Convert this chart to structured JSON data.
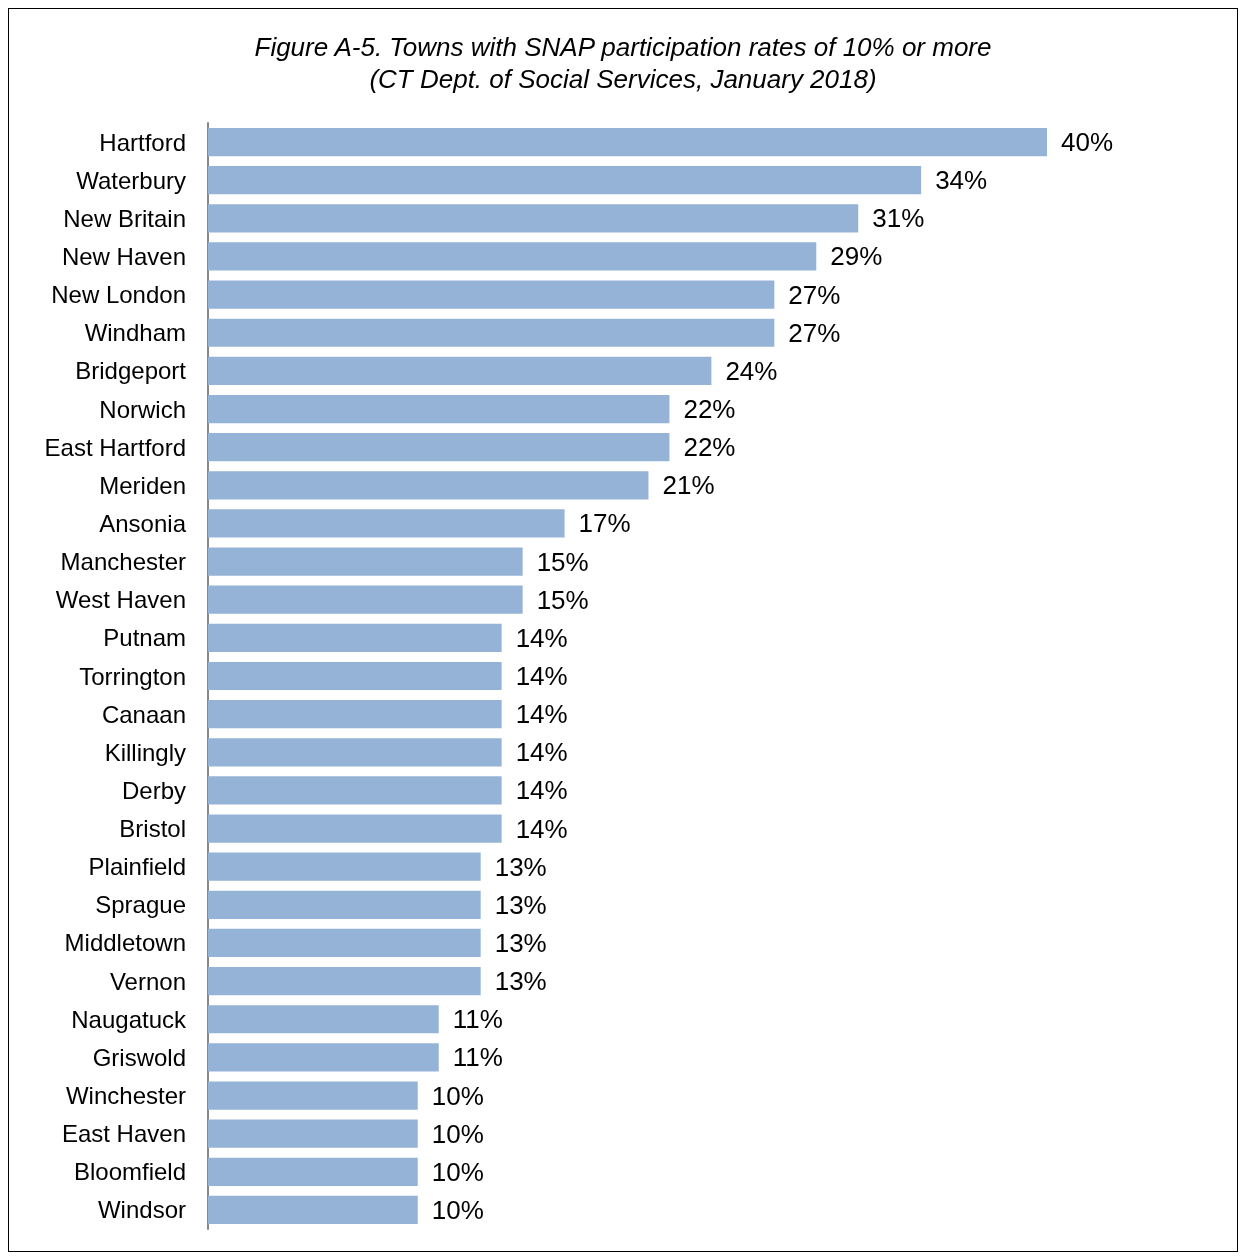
{
  "chart_data": {
    "type": "bar",
    "orientation": "horizontal",
    "title": "Figure A-5. Towns with SNAP participation rates of 10% or more",
    "subtitle": "(CT Dept. of Social Services, January 2018)",
    "categories": [
      "Hartford",
      "Waterbury",
      "New Britain",
      "New Haven",
      "New London",
      "Windham",
      "Bridgeport",
      "Norwich",
      "East Hartford",
      "Meriden",
      "Ansonia",
      "Manchester",
      "West Haven",
      "Putnam",
      "Torrington",
      "Canaan",
      "Killingly",
      "Derby",
      "Bristol",
      "Plainfield",
      "Sprague",
      "Middletown",
      "Vernon",
      "Naugatuck",
      "Griswold",
      "Winchester",
      "East Haven",
      "Bloomfield",
      "Windsor"
    ],
    "values": [
      40,
      34,
      31,
      29,
      27,
      27,
      24,
      22,
      22,
      21,
      17,
      15,
      15,
      14,
      14,
      14,
      14,
      14,
      14,
      13,
      13,
      13,
      13,
      11,
      11,
      10,
      10,
      10,
      10
    ],
    "value_labels": [
      "40%",
      "34%",
      "31%",
      "29%",
      "27%",
      "27%",
      "24%",
      "22%",
      "22%",
      "21%",
      "17%",
      "15%",
      "15%",
      "14%",
      "14%",
      "14%",
      "14%",
      "14%",
      "14%",
      "13%",
      "13%",
      "13%",
      "13%",
      "11%",
      "11%",
      "10%",
      "10%",
      "10%",
      "10%"
    ],
    "color": "#95b3d7"
  }
}
